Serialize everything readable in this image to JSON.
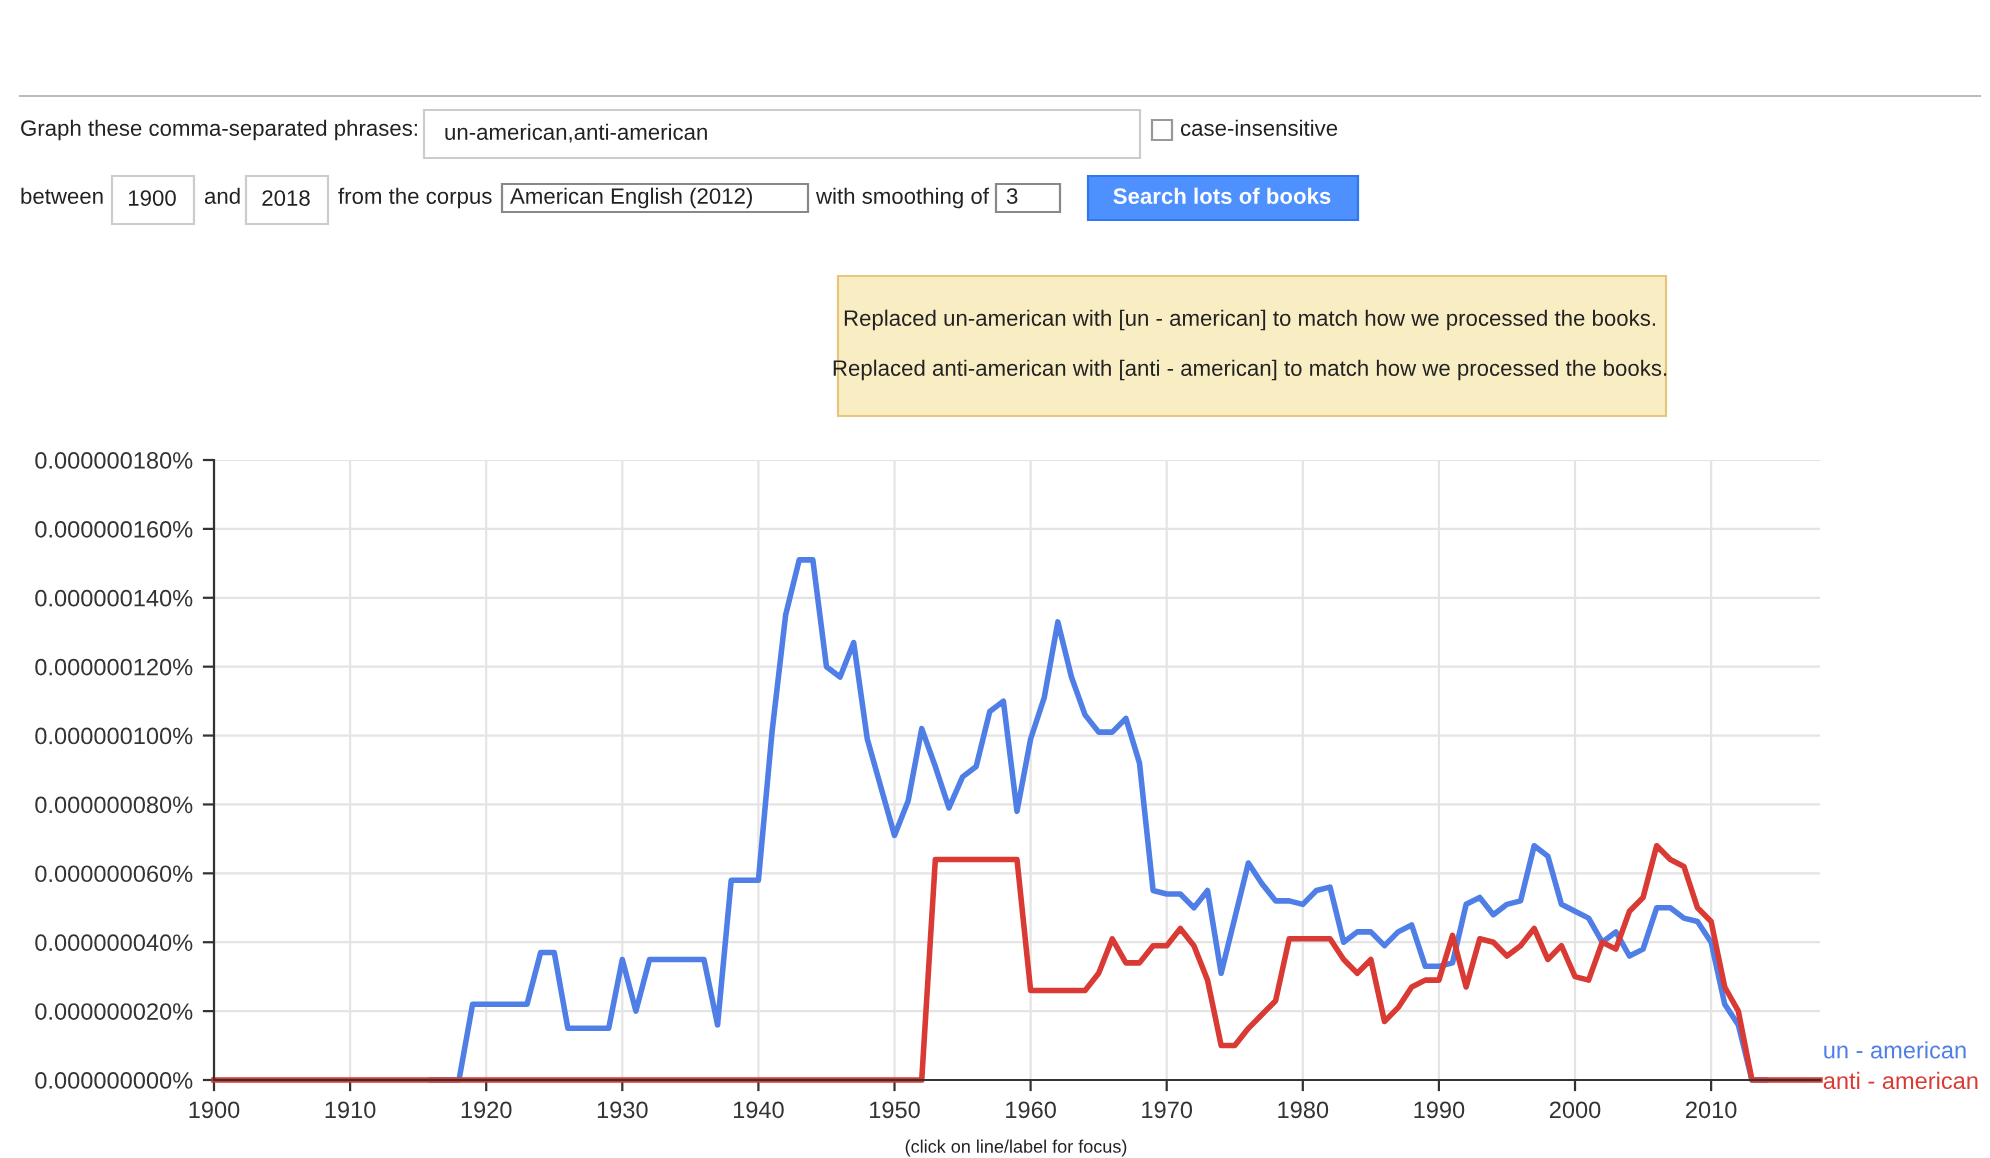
{
  "chart_data": {
    "type": "line",
    "x": [
      1900,
      1901,
      1902,
      1903,
      1904,
      1905,
      1906,
      1907,
      1908,
      1909,
      1910,
      1911,
      1912,
      1913,
      1914,
      1915,
      1916,
      1917,
      1918,
      1919,
      1920,
      1921,
      1922,
      1923,
      1924,
      1925,
      1926,
      1927,
      1928,
      1929,
      1930,
      1931,
      1932,
      1933,
      1934,
      1935,
      1936,
      1937,
      1938,
      1939,
      1940,
      1941,
      1942,
      1943,
      1944,
      1945,
      1946,
      1947,
      1948,
      1949,
      1950,
      1951,
      1952,
      1953,
      1954,
      1955,
      1956,
      1957,
      1958,
      1959,
      1960,
      1961,
      1962,
      1963,
      1964,
      1965,
      1966,
      1967,
      1968,
      1969,
      1970,
      1971,
      1972,
      1973,
      1974,
      1975,
      1976,
      1977,
      1978,
      1979,
      1980,
      1981,
      1982,
      1983,
      1984,
      1985,
      1986,
      1987,
      1988,
      1989,
      1990,
      1991,
      1992,
      1993,
      1994,
      1995,
      1996,
      1997,
      1998,
      1999,
      2000,
      2001,
      2002,
      2003,
      2004,
      2005,
      2006,
      2007,
      2008,
      2009,
      2010,
      2011,
      2012,
      2013,
      2014,
      2015,
      2016,
      2017,
      2018
    ],
    "series": [
      {
        "name": "un - american",
        "color": "#4f7fe6",
        "values": [
          null,
          null,
          null,
          null,
          null,
          null,
          null,
          null,
          null,
          null,
          null,
          null,
          null,
          null,
          null,
          null,
          0,
          0,
          0,
          2.2e-08,
          2.2e-08,
          2.2e-08,
          2.2e-08,
          2.2e-08,
          3.7e-08,
          3.7e-08,
          1.5e-08,
          1.5e-08,
          1.5e-08,
          1.5e-08,
          3.5e-08,
          2e-08,
          3.5e-08,
          3.5e-08,
          3.5e-08,
          3.5e-08,
          3.5e-08,
          1.6e-08,
          5.8e-08,
          5.8e-08,
          5.8e-08,
          1.01e-07,
          1.35e-07,
          1.51e-07,
          1.51e-07,
          1.2e-07,
          1.17e-07,
          1.27e-07,
          9.9e-08,
          8.5e-08,
          7.1e-08,
          8.1e-08,
          1.02e-07,
          9.1e-08,
          7.9e-08,
          8.8e-08,
          9.1e-08,
          1.07e-07,
          1.1e-07,
          7.8e-08,
          9.9e-08,
          1.11e-07,
          1.33e-07,
          1.17e-07,
          1.06e-07,
          1.01e-07,
          1.01e-07,
          1.05e-07,
          9.2e-08,
          5.5e-08,
          5.4e-08,
          5.4e-08,
          5e-08,
          5.5e-08,
          3.1e-08,
          4.7e-08,
          6.3e-08,
          5.7e-08,
          5.2e-08,
          5.2e-08,
          5.1e-08,
          5.5e-08,
          5.6e-08,
          4e-08,
          4.3e-08,
          4.3e-08,
          3.9e-08,
          4.3e-08,
          4.5e-08,
          3.3e-08,
          3.3e-08,
          3.4e-08,
          5.1e-08,
          5.3e-08,
          4.8e-08,
          5.1e-08,
          5.2e-08,
          6.8e-08,
          6.5e-08,
          5.1e-08,
          4.9e-08,
          4.7e-08,
          4e-08,
          4.3e-08,
          3.6e-08,
          3.8e-08,
          5e-08,
          5e-08,
          4.7e-08,
          4.6e-08,
          4e-08,
          2.2e-08,
          1.6e-08,
          0,
          0,
          null,
          null,
          null,
          null
        ]
      },
      {
        "name": "anti - american",
        "color": "#d93a33",
        "values": [
          0,
          0,
          0,
          0,
          0,
          0,
          0,
          0,
          0,
          0,
          0,
          0,
          0,
          0,
          0,
          0,
          0,
          0,
          0,
          0,
          0,
          0,
          0,
          0,
          0,
          0,
          0,
          0,
          0,
          0,
          0,
          0,
          0,
          0,
          0,
          0,
          0,
          0,
          0,
          0,
          0,
          0,
          0,
          0,
          0,
          0,
          0,
          0,
          0,
          0,
          0,
          0,
          0,
          6.4e-08,
          6.4e-08,
          6.4e-08,
          6.4e-08,
          6.4e-08,
          6.4e-08,
          6.4e-08,
          2.6e-08,
          2.6e-08,
          2.6e-08,
          2.6e-08,
          2.6e-08,
          3.1e-08,
          4.1e-08,
          3.4e-08,
          3.4e-08,
          3.9e-08,
          3.9e-08,
          4.4e-08,
          3.9e-08,
          2.9e-08,
          1e-08,
          1e-08,
          1.5e-08,
          1.9e-08,
          2.3e-08,
          4.1e-08,
          4.1e-08,
          4.1e-08,
          4.1e-08,
          3.5e-08,
          3.1e-08,
          3.5e-08,
          1.7e-08,
          2.1e-08,
          2.7e-08,
          2.9e-08,
          2.9e-08,
          4.2e-08,
          2.7e-08,
          4.1e-08,
          4e-08,
          3.6e-08,
          3.9e-08,
          4.4e-08,
          3.5e-08,
          3.9e-08,
          3e-08,
          2.9e-08,
          4e-08,
          3.8e-08,
          4.9e-08,
          5.3e-08,
          6.8e-08,
          6.4e-08,
          6.2e-08,
          5e-08,
          4.6e-08,
          2.7e-08,
          2e-08,
          0,
          0,
          0,
          0,
          0,
          0
        ]
      }
    ],
    "xlim": [
      1900,
      2018
    ],
    "xticks": [
      1900,
      1910,
      1920,
      1930,
      1940,
      1950,
      1960,
      1970,
      1980,
      1990,
      2000,
      2010
    ],
    "ylim": [
      0,
      1.8e-07
    ],
    "yticks": [
      {
        "value": 0,
        "label": "0.000000000%"
      },
      {
        "value": 2e-08,
        "label": "0.000000020%"
      },
      {
        "value": 4e-08,
        "label": "0.000000040%"
      },
      {
        "value": 6e-08,
        "label": "0.000000060%"
      },
      {
        "value": 8e-08,
        "label": "0.000000080%"
      },
      {
        "value": 1e-07,
        "label": "0.000000100%"
      },
      {
        "value": 1.2e-07,
        "label": "0.000000120%"
      },
      {
        "value": 1.4e-07,
        "label": "0.000000140%"
      },
      {
        "value": 1.6e-07,
        "label": "0.000000160%"
      },
      {
        "value": 1.8e-07,
        "label": "0.000000180%"
      }
    ],
    "grid": true,
    "legend": false,
    "marker": "none",
    "line_style": "solid",
    "annotations": [
      "Graph these comma-separated phrases:",
      "un-american,anti-american",
      "case-insensitive",
      "between",
      "1900",
      "and",
      "2018",
      "from the corpus",
      "American English (2012)",
      "with smoothing of",
      "3",
      "Search lots of books",
      "Replaced un-american with [un - american] to match how we processed the books.",
      "Replaced anti-american with [anti - american] to match how we processed the books.",
      "(click on line/label for focus)"
    ]
  }
}
